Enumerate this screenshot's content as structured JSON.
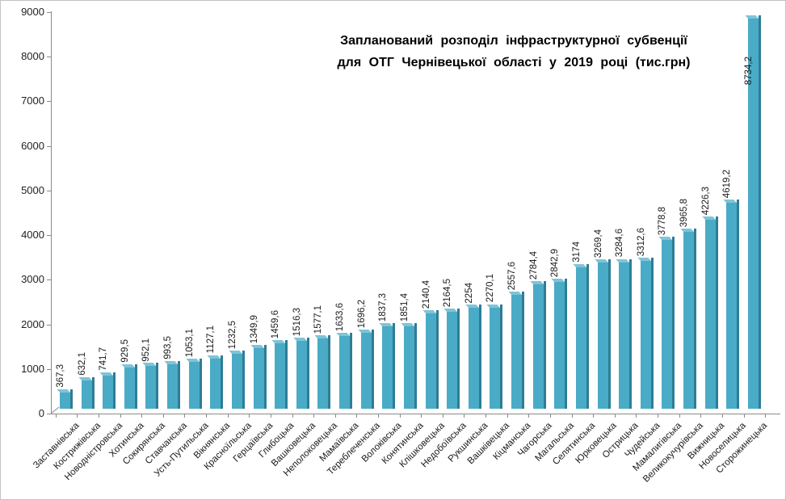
{
  "title": {
    "line1": "Запланований розподіл інфраструктурної субвенції",
    "line2": "для ОТГ Чернівецької області у 2019 році (тис.грн)"
  },
  "chart_data": {
    "type": "bar",
    "title": "Запланований розподіл інфраструктурної субвенції для ОТГ Чернівецької області у 2019 році (тис.грн)",
    "categories": [
      "Заставнівська",
      "Кострижівська",
      "Новодністровська",
      "Хотинська",
      "Сокирянська",
      "Ставчанська",
      "Усть-Путильська",
      "Вікнянська",
      "Красноїльська",
      "Герцаївська",
      "Глибоцька",
      "Вашковецька",
      "Неполоковецька",
      "Мамаївська",
      "Тереблеченська",
      "Волоківська",
      "Конятинська",
      "Клішковецька",
      "Недобоївська",
      "Рукшинська",
      "Вашківецька",
      "Кіцманська",
      "Чагорська",
      "Магальська",
      "Селятинська",
      "Юрковецька",
      "Острицька",
      "Чудейська",
      "Мамалигівська",
      "Великокучурівська",
      "Вижницька",
      "Новоселицька",
      "Сторожинецька"
    ],
    "values": [
      367.3,
      632.1,
      741.7,
      929.5,
      952.1,
      993.5,
      1053.1,
      1127.1,
      1232.5,
      1349.9,
      1459.6,
      1516.3,
      1577.1,
      1633.6,
      1696.2,
      1837.3,
      1851.4,
      2140.4,
      2164.5,
      2254,
      2270.1,
      2557.6,
      2784.4,
      2842.9,
      3174,
      3269.4,
      3284.6,
      3312.6,
      3778.8,
      3965.8,
      4226.3,
      4619.2,
      8734.2
    ],
    "value_labels": [
      "367,3",
      "632,1",
      "741,7",
      "929,5",
      "952,1",
      "993,5",
      "1053,1",
      "1127,1",
      "1232,5",
      "1349,9",
      "1459,6",
      "1516,3",
      "1577,1",
      "1633,6",
      "1696,2",
      "1837,3",
      "1851,4",
      "2140,4",
      "2164,5",
      "2254",
      "2270,1",
      "2557,6",
      "2784,4",
      "2842,9",
      "3174",
      "3269,4",
      "3284,6",
      "3312,6",
      "3778,8",
      "3965,8",
      "4226,3",
      "4619,2",
      "8734,2"
    ],
    "xlabel": "",
    "ylabel": "",
    "ylim": [
      0,
      9000
    ],
    "ytick_step": 1000,
    "ytick_labels": [
      "0",
      "1000",
      "2000",
      "3000",
      "4000",
      "5000",
      "6000",
      "7000",
      "8000",
      "9000"
    ],
    "grid": false,
    "legend": "none",
    "style": "3d-column",
    "colors": {
      "bar_face": "#4aabc6",
      "bar_edge": "#2e7d95",
      "bar_top": "#7fc4d7",
      "axis": "#8a8a8a",
      "text": "#1a1a1a"
    }
  }
}
